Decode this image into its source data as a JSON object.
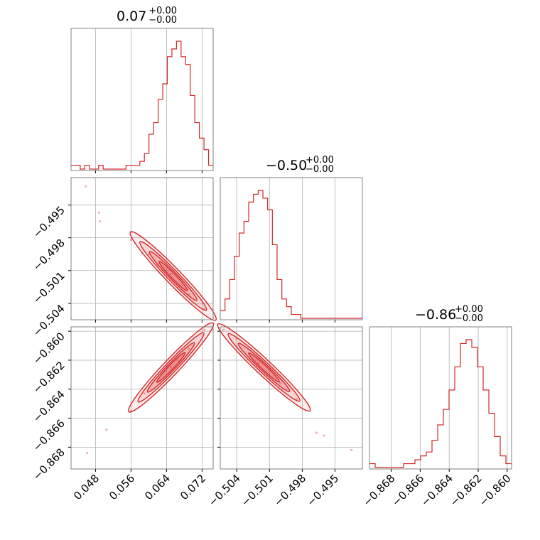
{
  "colors": {
    "series": "#d62728",
    "grid": "#b0b0b0",
    "frame": "#808080"
  },
  "chart_data": {
    "type": "corner",
    "grid": true,
    "parameters": [
      {
        "title_value": "0.07",
        "title_upper": "+0.00",
        "title_lower": "−0.00",
        "range": [
          0.0425,
          0.0745
        ],
        "ticks": [
          0.048,
          0.056,
          0.064,
          0.072
        ],
        "tick_labels": [
          "0.048",
          "0.056",
          "0.064",
          "0.072"
        ]
      },
      {
        "title_value": "−0.50",
        "title_upper": "+0.00",
        "title_lower": "−0.00",
        "range": [
          -0.5055,
          -0.4925
        ],
        "ticks": [
          -0.504,
          -0.501,
          -0.498,
          -0.495
        ],
        "tick_labels": [
          "−0.504",
          "−0.501",
          "−0.498",
          "−0.495"
        ]
      },
      {
        "title_value": "−0.86",
        "title_upper": "+0.00",
        "title_lower": "−0.00",
        "range": [
          -0.8695,
          -0.8597
        ],
        "ticks": [
          -0.868,
          -0.866,
          -0.864,
          -0.862,
          -0.86
        ],
        "tick_labels": [
          "−0.868",
          "−0.866",
          "−0.864",
          "−0.862",
          "−0.860"
        ]
      }
    ],
    "histograms": [
      {
        "param": 0,
        "counts": [
          1,
          1,
          0,
          1,
          0,
          0,
          1,
          0,
          0,
          0,
          0,
          0,
          1,
          1,
          1,
          2,
          4,
          9,
          12,
          18,
          22,
          29,
          31,
          33,
          29,
          27,
          19,
          12,
          8,
          5,
          1
        ]
      },
      {
        "param": 1,
        "counts": [
          2,
          5,
          10,
          16,
          22,
          25,
          30,
          32,
          33,
          31,
          28,
          19,
          10,
          5,
          3,
          1,
          1,
          0,
          0,
          0,
          0,
          0,
          0,
          0,
          0,
          0,
          0,
          0,
          0,
          0
        ]
      },
      {
        "param": 2,
        "counts": [
          1,
          0,
          0,
          0,
          0,
          0,
          1,
          1,
          2,
          3,
          4,
          7,
          11,
          15,
          20,
          26,
          32,
          33,
          31,
          26,
          20,
          14,
          8,
          3,
          1
        ]
      }
    ],
    "contours": [
      {
        "x_param": 0,
        "y_param": 1,
        "center": [
          0.0655,
          -0.5015
        ],
        "samples": [
          [
            0.0458,
            -0.4933
          ],
          [
            0.0488,
            -0.4957
          ],
          [
            0.049,
            -0.4965
          ],
          [
            0.056,
            -0.4982
          ],
          [
            0.0585,
            -0.4994
          ],
          [
            0.06,
            -0.4995
          ],
          [
            0.062,
            -0.5005
          ],
          [
            0.065,
            -0.5013
          ],
          [
            0.069,
            -0.5032
          ],
          [
            0.0725,
            -0.5045
          ]
        ]
      },
      {
        "x_param": 0,
        "y_param": 2,
        "center": [
          0.065,
          -0.8625
        ],
        "samples": [
          [
            0.0461,
            -0.8684
          ],
          [
            0.0505,
            -0.8668
          ],
          [
            0.056,
            -0.8655
          ],
          [
            0.059,
            -0.8643
          ],
          [
            0.062,
            -0.8635
          ],
          [
            0.065,
            -0.8625
          ],
          [
            0.069,
            -0.8612
          ],
          [
            0.0725,
            -0.8599
          ]
        ]
      },
      {
        "x_param": 1,
        "y_param": 2,
        "center": [
          -0.5015,
          -0.8625
        ],
        "samples": [
          [
            -0.5052,
            -0.8599
          ],
          [
            -0.504,
            -0.8605
          ],
          [
            -0.502,
            -0.8622
          ],
          [
            -0.5,
            -0.8636
          ],
          [
            -0.4985,
            -0.8647
          ],
          [
            -0.4967,
            -0.867
          ],
          [
            -0.496,
            -0.8672
          ],
          [
            -0.4935,
            -0.8682
          ]
        ]
      }
    ]
  }
}
